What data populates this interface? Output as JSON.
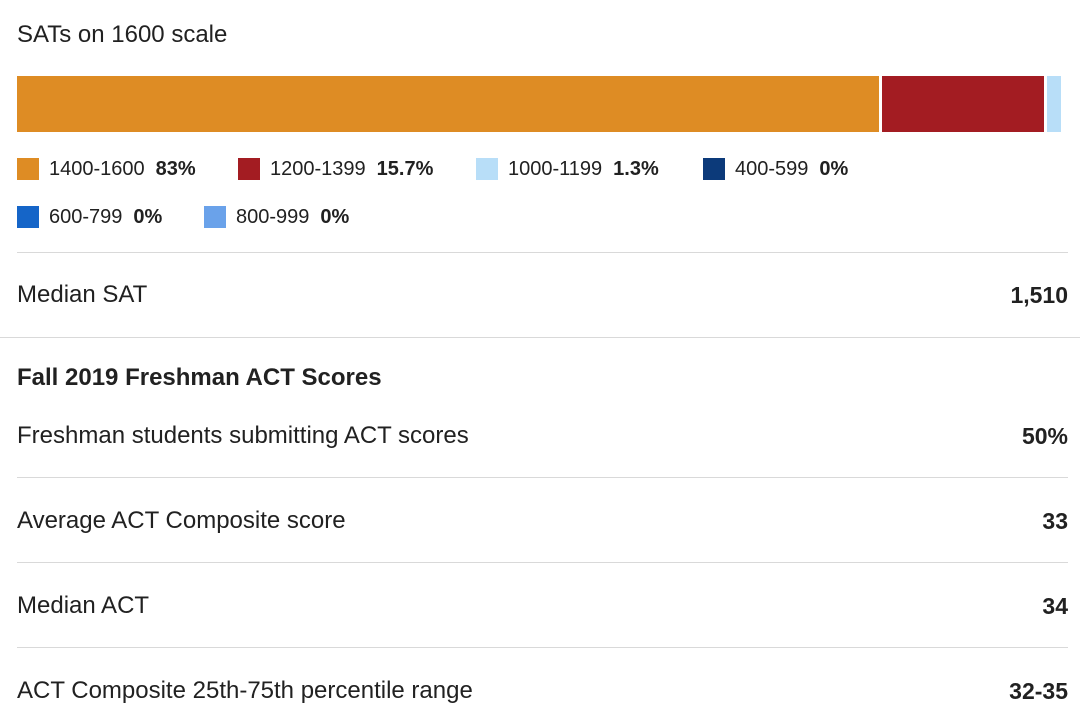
{
  "sat": {
    "title": "SATs on 1600 scale",
    "segments": [
      {
        "range": "1400-1600",
        "percent_label": "83%",
        "value": 83,
        "color": "#de8c24"
      },
      {
        "range": "1200-1399",
        "percent_label": "15.7%",
        "value": 15.7,
        "color": "#a31c22"
      },
      {
        "range": "1000-1199",
        "percent_label": "1.3%",
        "value": 1.3,
        "color": "#b8def8"
      },
      {
        "range": "400-599",
        "percent_label": "0%",
        "value": 0,
        "color": "#0c3a7a"
      },
      {
        "range": "600-799",
        "percent_label": "0%",
        "value": 0,
        "color": "#1565c8"
      },
      {
        "range": "800-999",
        "percent_label": "0%",
        "value": 0,
        "color": "#6aa2ea"
      }
    ],
    "median": {
      "label": "Median SAT",
      "value": "1,510"
    }
  },
  "act": {
    "heading": "Fall 2019 Freshman ACT Scores",
    "rows": [
      {
        "label": "Freshman students submitting ACT scores",
        "value": "50%"
      },
      {
        "label": "Average ACT Composite score",
        "value": "33"
      },
      {
        "label": "Median ACT",
        "value": "34"
      },
      {
        "label": "ACT Composite 25th-75th percentile range",
        "value": "32-35"
      }
    ]
  }
}
